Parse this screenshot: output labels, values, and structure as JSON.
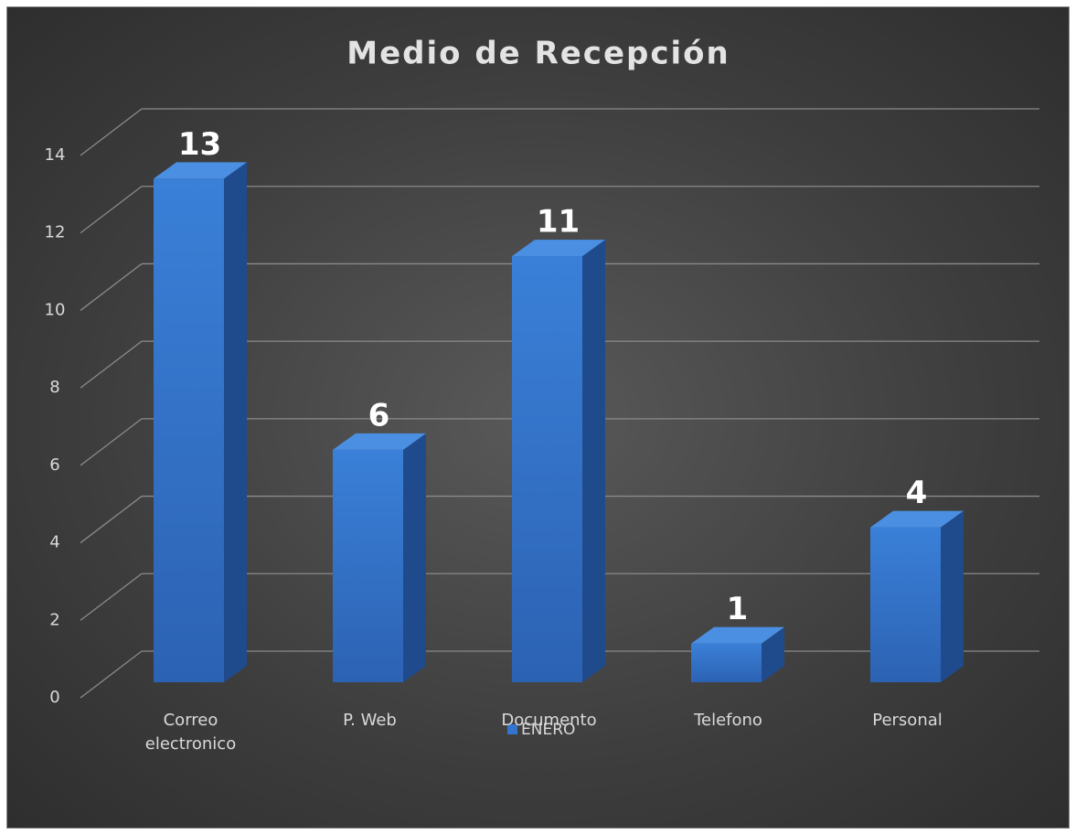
{
  "chart_data": {
    "type": "bar3d",
    "title": "Medio de Recepción",
    "categories": [
      "Correo electronico",
      "P. Web",
      "Documento",
      "Telefono",
      "Personal"
    ],
    "series": [
      {
        "name": "ENERO",
        "color": "#3574cc",
        "values": [
          13,
          6,
          11,
          1,
          4
        ]
      }
    ],
    "ylim": [
      0,
      14
    ],
    "yticks": [
      0,
      2,
      4,
      6,
      8,
      10,
      12,
      14
    ],
    "grid": true,
    "legend": "bottom"
  }
}
